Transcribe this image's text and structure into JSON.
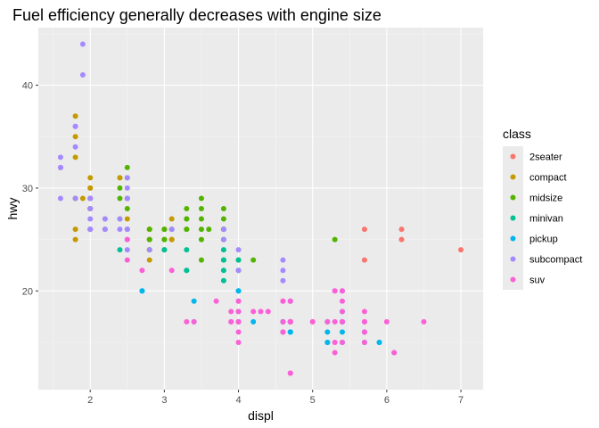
{
  "chart_data": {
    "type": "scatter",
    "title": "Fuel efficiency generally decreases with engine size",
    "xlabel": "displ",
    "ylabel": "hwy",
    "xlim": [
      1.3,
      7.3
    ],
    "ylim": [
      10.4,
      45.6
    ],
    "x_ticks": [
      2,
      3,
      4,
      5,
      6,
      7
    ],
    "y_ticks": [
      20,
      30,
      40
    ],
    "grid": true,
    "legend": {
      "title": "class",
      "placement": "right"
    },
    "series": [
      {
        "name": "2seater",
        "color": "#F8766D",
        "points": [
          [
            5.7,
            26
          ],
          [
            5.7,
            23
          ],
          [
            6.2,
            26
          ],
          [
            6.2,
            25
          ],
          [
            7.0,
            24
          ]
        ]
      },
      {
        "name": "compact",
        "color": "#C49A00",
        "points": [
          [
            1.8,
            29
          ],
          [
            1.8,
            29
          ],
          [
            2.0,
            31
          ],
          [
            2.0,
            30
          ],
          [
            2.8,
            26
          ],
          [
            2.8,
            26
          ],
          [
            3.1,
            27
          ],
          [
            1.8,
            26
          ],
          [
            1.8,
            25
          ],
          [
            2.0,
            28
          ],
          [
            2.0,
            28
          ],
          [
            2.8,
            25
          ],
          [
            2.8,
            25
          ],
          [
            3.1,
            25
          ],
          [
            3.1,
            25
          ],
          [
            2.2,
            26
          ],
          [
            2.2,
            27
          ],
          [
            2.4,
            31
          ],
          [
            2.4,
            31
          ],
          [
            3.0,
            26
          ],
          [
            1.9,
            29
          ],
          [
            2.0,
            29
          ],
          [
            2.0,
            28
          ],
          [
            2.5,
            29
          ],
          [
            1.8,
            37
          ],
          [
            1.8,
            35
          ],
          [
            1.8,
            33
          ],
          [
            2.0,
            29
          ],
          [
            2.0,
            28
          ],
          [
            2.5,
            29
          ],
          [
            2.8,
            24
          ],
          [
            2.0,
            30
          ],
          [
            2.5,
            27
          ],
          [
            2.5,
            26
          ],
          [
            2.8,
            23
          ]
        ]
      },
      {
        "name": "midsize",
        "color": "#53B400",
        "points": [
          [
            2.4,
            27
          ],
          [
            3.0,
            26
          ],
          [
            3.0,
            25
          ],
          [
            3.3,
            28
          ],
          [
            3.3,
            26
          ],
          [
            3.8,
            26
          ],
          [
            3.8,
            23
          ],
          [
            3.8,
            26
          ],
          [
            4.0,
            23
          ],
          [
            2.4,
            30
          ],
          [
            2.5,
            31
          ],
          [
            3.3,
            27
          ],
          [
            3.3,
            26
          ],
          [
            3.5,
            26
          ],
          [
            3.5,
            27
          ],
          [
            2.5,
            32
          ],
          [
            3.5,
            28
          ],
          [
            3.5,
            29
          ],
          [
            3.5,
            25
          ],
          [
            2.8,
            25
          ],
          [
            3.1,
            26
          ],
          [
            3.8,
            28
          ],
          [
            3.8,
            27
          ],
          [
            3.8,
            26
          ],
          [
            5.3,
            25
          ],
          [
            2.0,
            28
          ],
          [
            2.0,
            29
          ],
          [
            2.0,
            26
          ],
          [
            2.8,
            26
          ],
          [
            2.8,
            24
          ],
          [
            3.6,
            26
          ],
          [
            4.2,
            23
          ],
          [
            2.4,
            29
          ],
          [
            3.0,
            24
          ],
          [
            3.3,
            27
          ],
          [
            3.8,
            25
          ],
          [
            3.0,
            26
          ],
          [
            3.5,
            23
          ],
          [
            3.0,
            25
          ],
          [
            2.5,
            29
          ],
          [
            2.5,
            28
          ]
        ]
      },
      {
        "name": "minivan",
        "color": "#00C094",
        "points": [
          [
            2.4,
            24
          ],
          [
            3.0,
            24
          ],
          [
            3.3,
            22
          ],
          [
            3.3,
            22
          ],
          [
            3.3,
            24
          ],
          [
            3.8,
            24
          ],
          [
            3.8,
            22
          ],
          [
            3.8,
            21
          ],
          [
            4.0,
            23
          ],
          [
            3.8,
            23
          ],
          [
            4.0,
            22
          ]
        ]
      },
      {
        "name": "pickup",
        "color": "#00B6EB",
        "points": [
          [
            2.7,
            20
          ],
          [
            2.7,
            20
          ],
          [
            3.4,
            19
          ],
          [
            3.4,
            17
          ],
          [
            4.0,
            17
          ],
          [
            4.0,
            18
          ],
          [
            4.0,
            20
          ],
          [
            4.2,
            17
          ],
          [
            4.7,
            16
          ],
          [
            4.7,
            17
          ],
          [
            4.7,
            16
          ],
          [
            5.2,
            15
          ],
          [
            5.2,
            17
          ],
          [
            5.7,
            15
          ],
          [
            5.9,
            15
          ],
          [
            4.6,
            16
          ],
          [
            4.6,
            17
          ],
          [
            5.4,
            17
          ],
          [
            5.4,
            15
          ],
          [
            5.4,
            16
          ],
          [
            4.7,
            17
          ],
          [
            4.7,
            19
          ],
          [
            5.2,
            16
          ],
          [
            5.2,
            15
          ],
          [
            5.7,
            16
          ],
          [
            5.9,
            15
          ],
          [
            4.6,
            17
          ],
          [
            5.4,
            17
          ],
          [
            5.4,
            18
          ],
          [
            4.7,
            16
          ],
          [
            5.4,
            17
          ],
          [
            4.0,
            20
          ],
          [
            4.7,
            17
          ]
        ]
      },
      {
        "name": "subcompact",
        "color": "#A58AFF",
        "points": [
          [
            3.8,
            26
          ],
          [
            3.8,
            25
          ],
          [
            4.0,
            24
          ],
          [
            4.6,
            23
          ],
          [
            4.6,
            22
          ],
          [
            4.6,
            21
          ],
          [
            5.4,
            20
          ],
          [
            1.6,
            33
          ],
          [
            1.6,
            32
          ],
          [
            1.6,
            32
          ],
          [
            1.6,
            29
          ],
          [
            1.6,
            32
          ],
          [
            1.8,
            34
          ],
          [
            1.8,
            36
          ],
          [
            1.8,
            36
          ],
          [
            2.0,
            29
          ],
          [
            2.4,
            26
          ],
          [
            2.4,
            27
          ],
          [
            2.5,
            30
          ],
          [
            2.5,
            31
          ],
          [
            2.5,
            26
          ],
          [
            2.0,
            26
          ],
          [
            2.0,
            27
          ],
          [
            2.0,
            26
          ],
          [
            2.2,
            27
          ],
          [
            2.5,
            25
          ],
          [
            1.9,
            44
          ],
          [
            1.9,
            41
          ],
          [
            2.0,
            29
          ],
          [
            2.0,
            26
          ],
          [
            2.5,
            29
          ],
          [
            2.8,
            24
          ],
          [
            3.1,
            26
          ],
          [
            2.0,
            28
          ],
          [
            2.0,
            29
          ],
          [
            2.5,
            29
          ],
          [
            2.2,
            26
          ],
          [
            1.8,
            29
          ],
          [
            2.5,
            24
          ],
          [
            2.5,
            26
          ],
          [
            2.0,
            28
          ],
          [
            2.0,
            26
          ],
          [
            4.0,
            22
          ]
        ]
      },
      {
        "name": "suv",
        "color": "#FB61D7",
        "points": [
          [
            5.3,
            20
          ],
          [
            5.3,
            15
          ],
          [
            5.3,
            20
          ],
          [
            5.7,
            17
          ],
          [
            6.0,
            17
          ],
          [
            5.7,
            15
          ],
          [
            6.5,
            17
          ],
          [
            5.3,
            14
          ],
          [
            4.7,
            12
          ],
          [
            4.7,
            12
          ],
          [
            4.7,
            12
          ],
          [
            5.7,
            16
          ],
          [
            6.1,
            14
          ],
          [
            4.7,
            19
          ],
          [
            4.0,
            18
          ],
          [
            4.0,
            17
          ],
          [
            4.0,
            19
          ],
          [
            4.6,
            19
          ],
          [
            5.0,
            17
          ],
          [
            3.3,
            17
          ],
          [
            3.7,
            19
          ],
          [
            4.0,
            15
          ],
          [
            4.7,
            17
          ],
          [
            4.7,
            17
          ],
          [
            4.7,
            19
          ],
          [
            5.4,
            17
          ],
          [
            5.4,
            18
          ],
          [
            4.7,
            17
          ],
          [
            4.7,
            17
          ],
          [
            5.7,
            18
          ],
          [
            5.0,
            17
          ],
          [
            4.2,
            18
          ],
          [
            4.4,
            18
          ],
          [
            4.0,
            19
          ],
          [
            4.0,
            16
          ],
          [
            4.6,
            17
          ],
          [
            5.4,
            17
          ],
          [
            4.6,
            19
          ],
          [
            3.9,
            17
          ],
          [
            3.9,
            18
          ],
          [
            4.6,
            16
          ],
          [
            5.4,
            15
          ],
          [
            5.3,
            17
          ],
          [
            4.0,
            17
          ],
          [
            4.7,
            17
          ],
          [
            5.7,
            17
          ],
          [
            6.1,
            14
          ],
          [
            2.5,
            23
          ],
          [
            2.5,
            25
          ],
          [
            2.7,
            22
          ],
          [
            3.1,
            22
          ],
          [
            3.4,
            17
          ],
          [
            3.9,
            17
          ],
          [
            4.3,
            18
          ],
          [
            4.6,
            16
          ],
          [
            5.4,
            20
          ],
          [
            4.7,
            17
          ],
          [
            4.7,
            17
          ],
          [
            5.2,
            17
          ],
          [
            5.7,
            16
          ],
          [
            5.4,
            19
          ]
        ]
      }
    ]
  }
}
